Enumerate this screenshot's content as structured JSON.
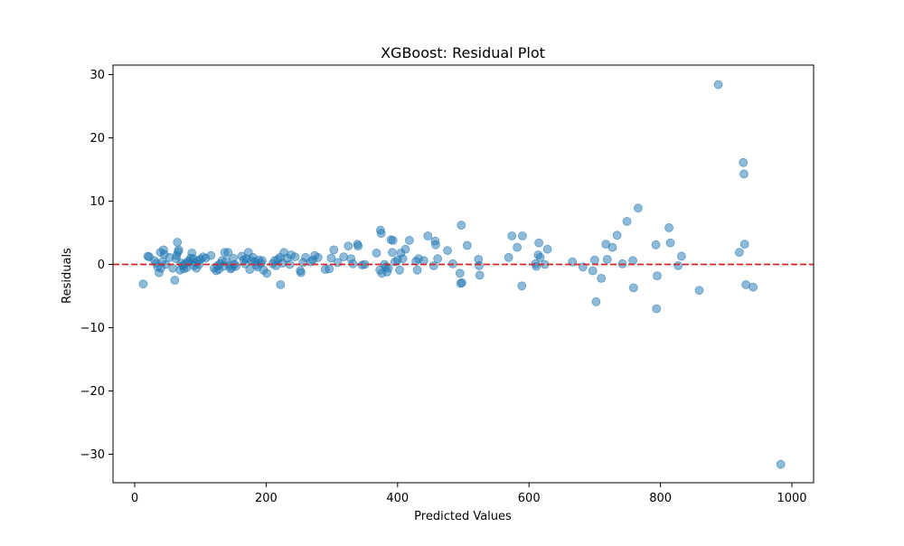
{
  "chart_data": {
    "type": "scatter",
    "title": "XGBoost: Residual Plot",
    "xlabel": "Predicted Values",
    "ylabel": "Residuals",
    "xlim": [
      -33,
      1033
    ],
    "ylim": [
      -34.5,
      31.5
    ],
    "x_ticks": [
      0,
      200,
      400,
      600,
      800,
      1000
    ],
    "y_ticks": [
      -30,
      -20,
      -10,
      0,
      10,
      20,
      30
    ],
    "grid": false,
    "marker_color": "#1f77b4",
    "marker_alpha": 0.5,
    "reference_line": {
      "y": 0,
      "color": "#d62728",
      "style": "dashed"
    },
    "points": [
      {
        "x": 13,
        "y": -3.1
      },
      {
        "x": 20,
        "y": 1.3
      },
      {
        "x": 22,
        "y": 1.2
      },
      {
        "x": 30,
        "y": 0.6
      },
      {
        "x": 33,
        "y": 0.2
      },
      {
        "x": 35,
        "y": -0.4
      },
      {
        "x": 37,
        "y": -1.3
      },
      {
        "x": 39,
        "y": 1.9
      },
      {
        "x": 40,
        "y": -0.6
      },
      {
        "x": 42,
        "y": 0.4
      },
      {
        "x": 44,
        "y": 2.3
      },
      {
        "x": 45,
        "y": 1.6
      },
      {
        "x": 47,
        "y": 0.0
      },
      {
        "x": 53,
        "y": 1.1
      },
      {
        "x": 58,
        "y": -0.6
      },
      {
        "x": 61,
        "y": -2.5
      },
      {
        "x": 63,
        "y": 0.9
      },
      {
        "x": 64,
        "y": 1.4
      },
      {
        "x": 65,
        "y": 3.5
      },
      {
        "x": 66,
        "y": 2.0
      },
      {
        "x": 67,
        "y": 2.3
      },
      {
        "x": 69,
        "y": -0.9
      },
      {
        "x": 71,
        "y": 0.2
      },
      {
        "x": 73,
        "y": -0.2
      },
      {
        "x": 75,
        "y": -0.7
      },
      {
        "x": 77,
        "y": 0.1
      },
      {
        "x": 79,
        "y": -0.5
      },
      {
        "x": 81,
        "y": 0.5
      },
      {
        "x": 83,
        "y": 0.4
      },
      {
        "x": 85,
        "y": 1.0
      },
      {
        "x": 87,
        "y": 1.8
      },
      {
        "x": 89,
        "y": 0.9
      },
      {
        "x": 90,
        "y": -0.2
      },
      {
        "x": 92,
        "y": 0.3
      },
      {
        "x": 94,
        "y": -0.6
      },
      {
        "x": 96,
        "y": 0.6
      },
      {
        "x": 98,
        "y": 0.0
      },
      {
        "x": 100,
        "y": 0.8
      },
      {
        "x": 104,
        "y": 1.2
      },
      {
        "x": 108,
        "y": 1.0
      },
      {
        "x": 116,
        "y": 1.4
      },
      {
        "x": 121,
        "y": -0.6
      },
      {
        "x": 124,
        "y": -1.0
      },
      {
        "x": 126,
        "y": -0.2
      },
      {
        "x": 128,
        "y": -0.8
      },
      {
        "x": 130,
        "y": 0.1
      },
      {
        "x": 133,
        "y": 0.6
      },
      {
        "x": 135,
        "y": -0.3
      },
      {
        "x": 137,
        "y": 1.9
      },
      {
        "x": 139,
        "y": 0.5
      },
      {
        "x": 142,
        "y": 1.9
      },
      {
        "x": 144,
        "y": -0.2
      },
      {
        "x": 146,
        "y": -0.7
      },
      {
        "x": 148,
        "y": -0.5
      },
      {
        "x": 150,
        "y": 1.0
      },
      {
        "x": 152,
        "y": 0.0
      },
      {
        "x": 154,
        "y": -0.3
      },
      {
        "x": 163,
        "y": 1.3
      },
      {
        "x": 166,
        "y": 0.7
      },
      {
        "x": 168,
        "y": 0.1
      },
      {
        "x": 170,
        "y": 0.9
      },
      {
        "x": 173,
        "y": 1.9
      },
      {
        "x": 175,
        "y": -0.8
      },
      {
        "x": 178,
        "y": 0.6
      },
      {
        "x": 180,
        "y": 1.1
      },
      {
        "x": 183,
        "y": 0.4
      },
      {
        "x": 185,
        "y": -0.1
      },
      {
        "x": 187,
        "y": -0.4
      },
      {
        "x": 189,
        "y": 0.7
      },
      {
        "x": 192,
        "y": 0.2
      },
      {
        "x": 194,
        "y": 0.6
      },
      {
        "x": 196,
        "y": -0.9
      },
      {
        "x": 201,
        "y": -1.4
      },
      {
        "x": 210,
        "y": 0.1
      },
      {
        "x": 213,
        "y": 0.6
      },
      {
        "x": 215,
        "y": -0.2
      },
      {
        "x": 218,
        "y": 0.8
      },
      {
        "x": 221,
        "y": 1.1
      },
      {
        "x": 222,
        "y": -3.2
      },
      {
        "x": 225,
        "y": 0.2
      },
      {
        "x": 227,
        "y": 1.9
      },
      {
        "x": 232,
        "y": 1.0
      },
      {
        "x": 236,
        "y": 0.0
      },
      {
        "x": 238,
        "y": 1.5
      },
      {
        "x": 244,
        "y": 1.2
      },
      {
        "x": 252,
        "y": -1.0
      },
      {
        "x": 253,
        "y": -1.3
      },
      {
        "x": 256,
        "y": 0.3
      },
      {
        "x": 260,
        "y": 1.1
      },
      {
        "x": 268,
        "y": 0.4
      },
      {
        "x": 271,
        "y": 0.7
      },
      {
        "x": 274,
        "y": 1.4
      },
      {
        "x": 279,
        "y": 1.1
      },
      {
        "x": 290,
        "y": -0.8
      },
      {
        "x": 296,
        "y": -0.7
      },
      {
        "x": 299,
        "y": 1.0
      },
      {
        "x": 303,
        "y": 2.3
      },
      {
        "x": 309,
        "y": 0.3
      },
      {
        "x": 318,
        "y": 1.2
      },
      {
        "x": 325,
        "y": 2.9
      },
      {
        "x": 329,
        "y": 0.9
      },
      {
        "x": 332,
        "y": 0.1
      },
      {
        "x": 339,
        "y": 3.2
      },
      {
        "x": 340,
        "y": 2.9
      },
      {
        "x": 346,
        "y": -0.1
      },
      {
        "x": 350,
        "y": 0.0
      },
      {
        "x": 368,
        "y": 1.8
      },
      {
        "x": 373,
        "y": -0.9
      },
      {
        "x": 374,
        "y": 5.4
      },
      {
        "x": 375,
        "y": 4.9
      },
      {
        "x": 376,
        "y": -1.4
      },
      {
        "x": 380,
        "y": 0.0
      },
      {
        "x": 382,
        "y": -0.4
      },
      {
        "x": 384,
        "y": -1.2
      },
      {
        "x": 386,
        "y": -0.6
      },
      {
        "x": 390,
        "y": 3.9
      },
      {
        "x": 392,
        "y": 1.9
      },
      {
        "x": 393,
        "y": 3.8
      },
      {
        "x": 396,
        "y": 0.4
      },
      {
        "x": 400,
        "y": 0.7
      },
      {
        "x": 403,
        "y": -0.9
      },
      {
        "x": 405,
        "y": 1.8
      },
      {
        "x": 408,
        "y": 0.9
      },
      {
        "x": 412,
        "y": 2.4
      },
      {
        "x": 418,
        "y": 3.8
      },
      {
        "x": 428,
        "y": 0.5
      },
      {
        "x": 430,
        "y": -0.9
      },
      {
        "x": 432,
        "y": 0.9
      },
      {
        "x": 440,
        "y": 0.6
      },
      {
        "x": 446,
        "y": 4.5
      },
      {
        "x": 455,
        "y": -0.2
      },
      {
        "x": 457,
        "y": 3.7
      },
      {
        "x": 458,
        "y": 3.1
      },
      {
        "x": 461,
        "y": 0.9
      },
      {
        "x": 476,
        "y": 2.2
      },
      {
        "x": 484,
        "y": 0.1
      },
      {
        "x": 495,
        "y": -1.4
      },
      {
        "x": 496,
        "y": -3.0
      },
      {
        "x": 497,
        "y": 6.2
      },
      {
        "x": 498,
        "y": -2.9
      },
      {
        "x": 506,
        "y": 3.0
      },
      {
        "x": 523,
        "y": 0.8
      },
      {
        "x": 524,
        "y": -0.2
      },
      {
        "x": 525,
        "y": -1.7
      },
      {
        "x": 569,
        "y": 1.1
      },
      {
        "x": 574,
        "y": 4.5
      },
      {
        "x": 582,
        "y": 2.7
      },
      {
        "x": 589,
        "y": -3.4
      },
      {
        "x": 590,
        "y": 4.5
      },
      {
        "x": 610,
        "y": 0.1
      },
      {
        "x": 611,
        "y": -0.3
      },
      {
        "x": 614,
        "y": 1.5
      },
      {
        "x": 615,
        "y": 3.4
      },
      {
        "x": 617,
        "y": 1.1
      },
      {
        "x": 624,
        "y": 0.0
      },
      {
        "x": 628,
        "y": 2.4
      },
      {
        "x": 666,
        "y": 0.4
      },
      {
        "x": 682,
        "y": -0.4
      },
      {
        "x": 697,
        "y": -1.0
      },
      {
        "x": 700,
        "y": 0.7
      },
      {
        "x": 702,
        "y": -5.9
      },
      {
        "x": 710,
        "y": -2.2
      },
      {
        "x": 717,
        "y": 3.2
      },
      {
        "x": 719,
        "y": 0.8
      },
      {
        "x": 727,
        "y": 2.7
      },
      {
        "x": 734,
        "y": 4.6
      },
      {
        "x": 742,
        "y": 0.1
      },
      {
        "x": 749,
        "y": 6.8
      },
      {
        "x": 758,
        "y": 0.6
      },
      {
        "x": 759,
        "y": -3.7
      },
      {
        "x": 766,
        "y": 8.9
      },
      {
        "x": 793,
        "y": 3.1
      },
      {
        "x": 794,
        "y": -7.0
      },
      {
        "x": 795,
        "y": -1.8
      },
      {
        "x": 813,
        "y": 5.8
      },
      {
        "x": 815,
        "y": 3.4
      },
      {
        "x": 827,
        "y": -0.2
      },
      {
        "x": 832,
        "y": 1.3
      },
      {
        "x": 859,
        "y": -4.1
      },
      {
        "x": 888,
        "y": 28.4
      },
      {
        "x": 920,
        "y": 1.9
      },
      {
        "x": 926,
        "y": 16.1
      },
      {
        "x": 927,
        "y": 14.3
      },
      {
        "x": 928,
        "y": 3.2
      },
      {
        "x": 930,
        "y": -3.2
      },
      {
        "x": 941,
        "y": -3.6
      },
      {
        "x": 983,
        "y": -31.6
      }
    ]
  }
}
